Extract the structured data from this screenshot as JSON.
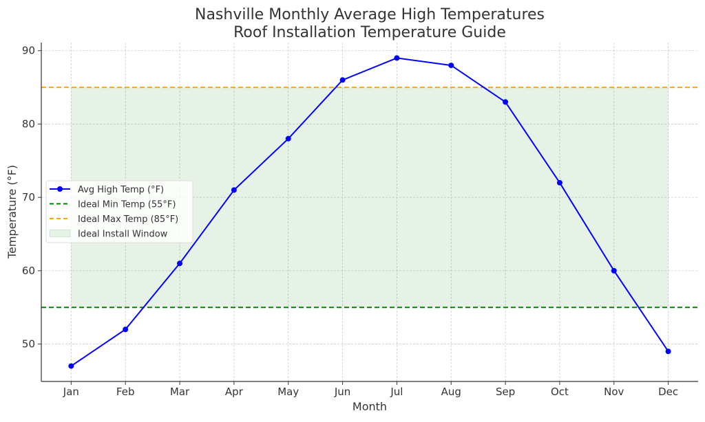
{
  "chart_data": {
    "type": "line",
    "title": "Nashville Monthly Average High Temperatures",
    "subtitle": "Roof Installation Temperature Guide",
    "xlabel": "Month",
    "ylabel": "Temperature (°F)",
    "categories": [
      "Jan",
      "Feb",
      "Mar",
      "Apr",
      "May",
      "Jun",
      "Jul",
      "Aug",
      "Sep",
      "Oct",
      "Nov",
      "Dec"
    ],
    "series": [
      {
        "name": "Avg High Temp (°F)",
        "values": [
          47,
          52,
          61,
          71,
          78,
          86,
          89,
          88,
          83,
          72,
          60,
          49
        ],
        "color": "#0000ff",
        "marker": "circle"
      }
    ],
    "hlines": [
      {
        "name": "Ideal Min Temp (55°F)",
        "y": 55,
        "color": "#008000",
        "style": "dashed"
      },
      {
        "name": "Ideal Max Temp (85°F)",
        "y": 85,
        "color": "#ffa500",
        "style": "dashed"
      }
    ],
    "band": {
      "name": "Ideal Install Window",
      "y0": 55,
      "y1": 85,
      "color": "#008000",
      "opacity": 0.1
    },
    "yticks": [
      50,
      60,
      70,
      80,
      90
    ],
    "ylim": [
      44.9,
      91.1
    ],
    "grid": true,
    "legend_placement": "center-left"
  }
}
